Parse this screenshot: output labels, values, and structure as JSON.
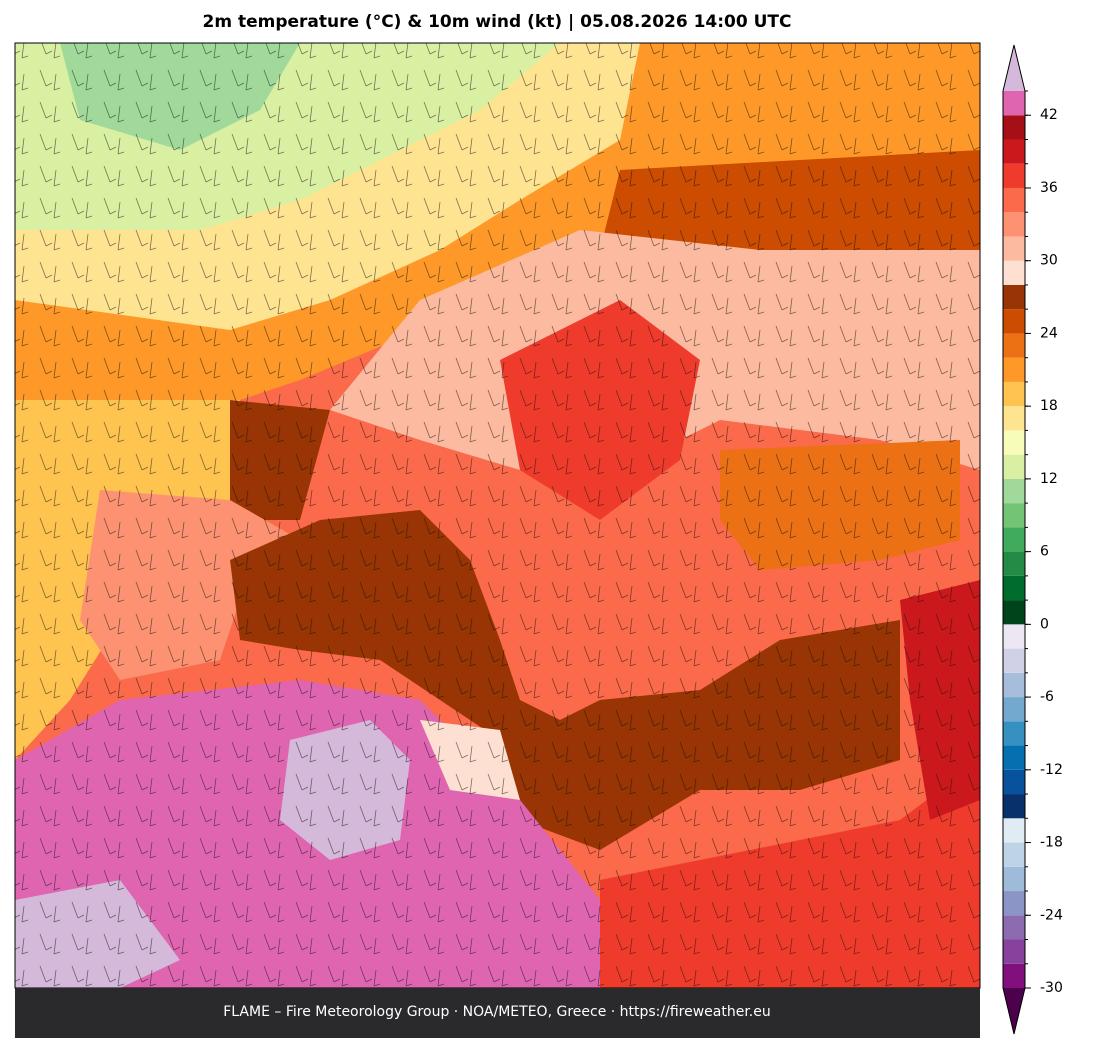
{
  "header": {
    "title": "2m temperature (°C) & 10m wind (kt)  |  05.08.2026 14:00 UTC"
  },
  "colorbar": {
    "levels": [
      -30,
      -28,
      -26,
      -24,
      -22,
      -20,
      -18,
      -16,
      -14,
      -12,
      -10,
      -8,
      -6,
      -4,
      -2,
      0,
      2,
      4,
      6,
      8,
      10,
      12,
      14,
      16,
      18,
      20,
      22,
      24,
      26,
      28,
      30,
      32,
      34,
      36,
      38,
      40,
      42,
      44
    ],
    "colors": [
      "#810f7c",
      "#88419d",
      "#8c6bb1",
      "#8c96c6",
      "#9ebcda",
      "#bfd3e6",
      "#e0ecf4",
      "#08306b",
      "#08519c",
      "#0570b0",
      "#3690c0",
      "#74a9cf",
      "#a6bddb",
      "#d0d1e6",
      "#ece7f2",
      "#00441b",
      "#006d2c",
      "#238b45",
      "#41ab5d",
      "#74c476",
      "#a1d99b",
      "#d9f0a3",
      "#f7fcb9",
      "#fee391",
      "#fec44f",
      "#fe9929",
      "#ec7014",
      "#cc4c02",
      "#993404",
      "#fee0d2",
      "#fcbba1",
      "#fc9272",
      "#fb6a4a",
      "#ef3b2c",
      "#cb181d",
      "#a50f15",
      "#df65b0"
    ],
    "under_color": "#4d004b",
    "over_color": "#d4b9da",
    "ticks": [
      -30,
      -24,
      -18,
      -12,
      -6,
      0,
      6,
      12,
      18,
      24,
      30,
      36,
      42
    ]
  },
  "footer": {
    "text": "FLAME – Fire Meteorology Group · NOA/METEO, Greece · https://fireweather.eu"
  }
}
